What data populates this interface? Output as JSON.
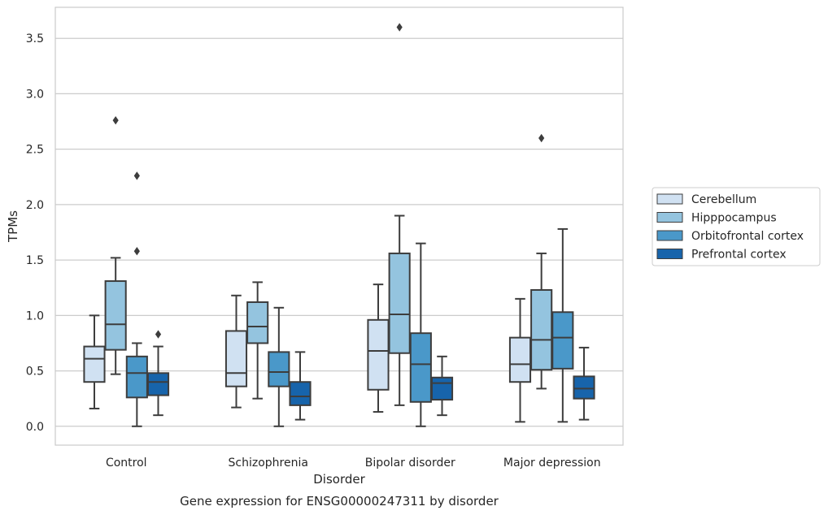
{
  "chart_data": {
    "type": "boxplot",
    "title": "",
    "caption": "Gene expression for ENSG00000247311 by disorder",
    "xlabel": "Disorder",
    "ylabel": "TPMs",
    "ylim": [
      -0.17,
      3.78
    ],
    "yticks": [
      0.0,
      0.5,
      1.0,
      1.5,
      2.0,
      2.5,
      3.0,
      3.5
    ],
    "ytick_labels": [
      "0.0",
      "0.5",
      "1.0",
      "1.5",
      "2.0",
      "2.5",
      "3.0",
      "3.5"
    ],
    "grid": "y",
    "legend_position": "right",
    "categories": [
      "Control",
      "Schizophrenia",
      "Bipolar disorder",
      "Major depression"
    ],
    "series": [
      {
        "name": "Cerebellum",
        "color": "#d0e1f2",
        "boxes": [
          {
            "whislo": 0.16,
            "q1": 0.4,
            "med": 0.61,
            "q3": 0.72,
            "whishi": 1.0,
            "fliers": []
          },
          {
            "whislo": 0.17,
            "q1": 0.36,
            "med": 0.48,
            "q3": 0.86,
            "whishi": 1.18,
            "fliers": []
          },
          {
            "whislo": 0.13,
            "q1": 0.33,
            "med": 0.68,
            "q3": 0.96,
            "whishi": 1.28,
            "fliers": []
          },
          {
            "whislo": 0.04,
            "q1": 0.4,
            "med": 0.56,
            "q3": 0.8,
            "whishi": 1.15,
            "fliers": []
          }
        ]
      },
      {
        "name": "Hipppocampus",
        "color": "#94c4df",
        "boxes": [
          {
            "whislo": 0.47,
            "q1": 0.69,
            "med": 0.92,
            "q3": 1.31,
            "whishi": 1.52,
            "fliers": [
              2.76
            ]
          },
          {
            "whislo": 0.25,
            "q1": 0.75,
            "med": 0.9,
            "q3": 1.12,
            "whishi": 1.3,
            "fliers": []
          },
          {
            "whislo": 0.19,
            "q1": 0.66,
            "med": 1.01,
            "q3": 1.56,
            "whishi": 1.9,
            "fliers": [
              3.6
            ]
          },
          {
            "whislo": 0.34,
            "q1": 0.51,
            "med": 0.78,
            "q3": 1.23,
            "whishi": 1.56,
            "fliers": [
              2.6
            ]
          }
        ]
      },
      {
        "name": "Orbitofrontal cortex",
        "color": "#4a98c9",
        "boxes": [
          {
            "whislo": 0.0,
            "q1": 0.26,
            "med": 0.48,
            "q3": 0.63,
            "whishi": 0.75,
            "fliers": [
              2.26,
              1.58
            ]
          },
          {
            "whislo": 0.0,
            "q1": 0.36,
            "med": 0.49,
            "q3": 0.67,
            "whishi": 1.07,
            "fliers": []
          },
          {
            "whislo": 0.0,
            "q1": 0.22,
            "med": 0.56,
            "q3": 0.84,
            "whishi": 1.65,
            "fliers": []
          },
          {
            "whislo": 0.04,
            "q1": 0.52,
            "med": 0.8,
            "q3": 1.03,
            "whishi": 1.78,
            "fliers": []
          }
        ]
      },
      {
        "name": "Prefrontal cortex",
        "color": "#1764ab",
        "boxes": [
          {
            "whislo": 0.1,
            "q1": 0.28,
            "med": 0.4,
            "q3": 0.48,
            "whishi": 0.72,
            "fliers": [
              0.83
            ]
          },
          {
            "whislo": 0.06,
            "q1": 0.19,
            "med": 0.27,
            "q3": 0.4,
            "whishi": 0.67,
            "fliers": []
          },
          {
            "whislo": 0.1,
            "q1": 0.24,
            "med": 0.39,
            "q3": 0.44,
            "whishi": 0.63,
            "fliers": []
          },
          {
            "whislo": 0.06,
            "q1": 0.25,
            "med": 0.34,
            "q3": 0.45,
            "whishi": 0.71,
            "fliers": []
          }
        ]
      }
    ]
  }
}
